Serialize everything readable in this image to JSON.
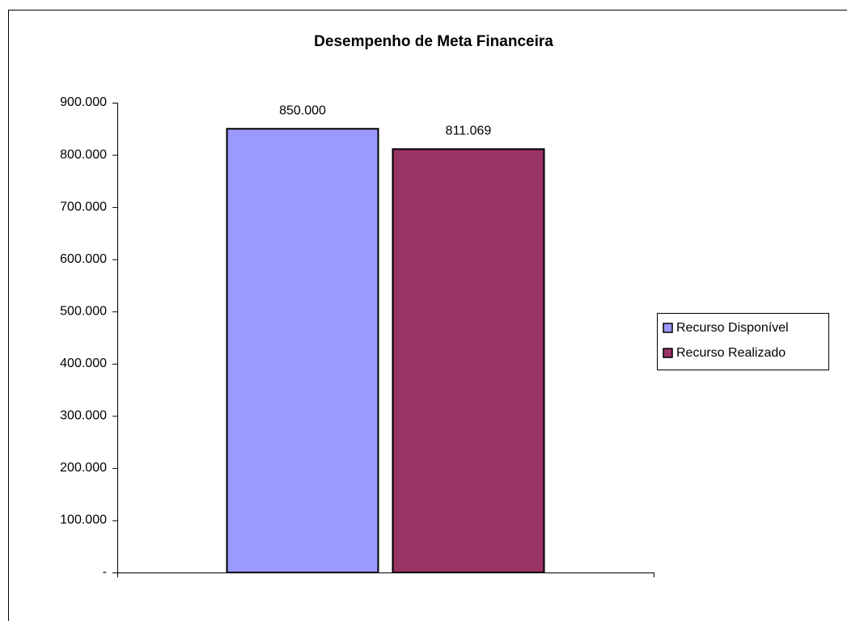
{
  "chart_data": {
    "type": "bar",
    "title": "Desempenho de Meta Financeira",
    "categories": [
      null
    ],
    "series": [
      {
        "name": "Recurso Disponível",
        "color": "#9999ff",
        "values": [
          850000
        ],
        "value_labels": [
          "850.000"
        ]
      },
      {
        "name": "Recurso Realizado",
        "color": "#993366",
        "values": [
          811069
        ],
        "value_labels": [
          "811.069"
        ]
      }
    ],
    "ylim": [
      0,
      900000
    ],
    "yticks": [
      {
        "value": 0,
        "label": "-"
      },
      {
        "value": 100000,
        "label": "100.000"
      },
      {
        "value": 200000,
        "label": "200.000"
      },
      {
        "value": 300000,
        "label": "300.000"
      },
      {
        "value": 400000,
        "label": "400.000"
      },
      {
        "value": 500000,
        "label": "500.000"
      },
      {
        "value": 600000,
        "label": "600.000"
      },
      {
        "value": 700000,
        "label": "700.000"
      },
      {
        "value": 800000,
        "label": "800.000"
      },
      {
        "value": 900000,
        "label": "900.000"
      }
    ],
    "grid": false,
    "legend": "right"
  }
}
